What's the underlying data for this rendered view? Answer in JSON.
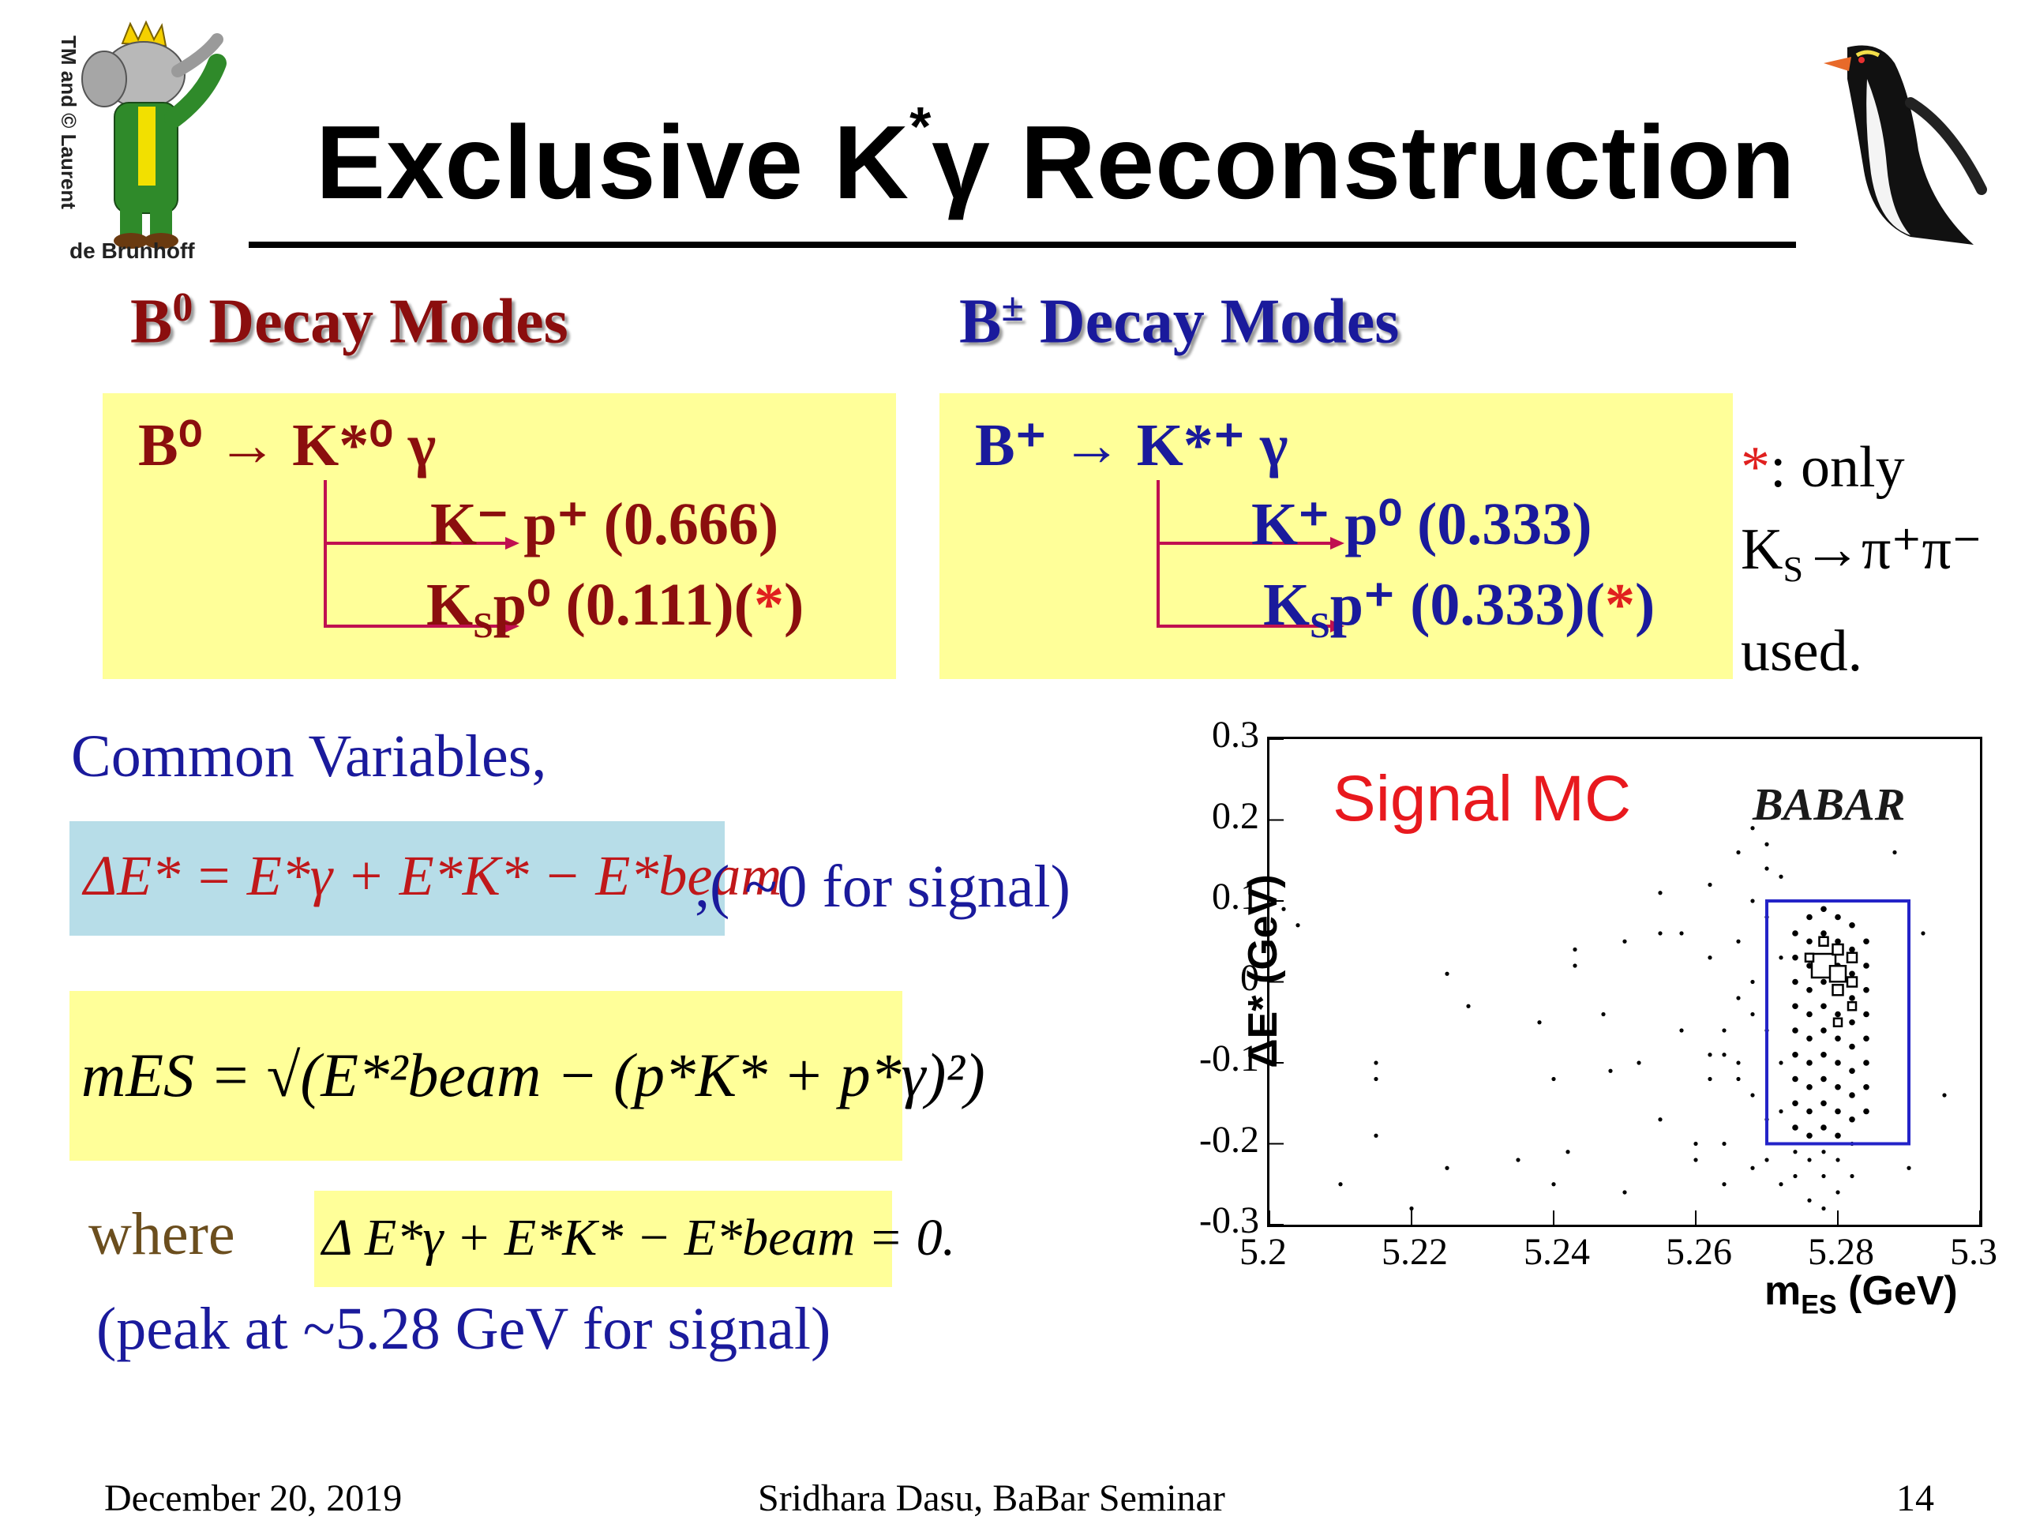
{
  "logo": {
    "credit_line1": "TM and © Laurent",
    "credit_line2": "de Brunhoff"
  },
  "title": {
    "text_pre": "Exclusive K",
    "text_sup": "*",
    "text_post": "γ Reconstruction"
  },
  "b0": {
    "heading_b": "B",
    "heading_sup": "0",
    "heading_rest": " Decay Modes",
    "main_decay": "B⁰ → K*⁰ γ",
    "mode1": "K⁻ p⁺ (0.666)",
    "mode2_pre": "K",
    "mode2_sub": "S",
    "mode2_post": "p⁰  (0.111)(",
    "mode2_ast": "*",
    "mode2_end": ")"
  },
  "bplus": {
    "heading_b": "B",
    "heading_sup": "±",
    "heading_rest": " Decay Modes",
    "main_decay": "B⁺ → K*⁺ γ",
    "mode1": "K⁺ p⁰ (0.333)",
    "mode2_pre": "K",
    "mode2_sub": "S",
    "mode2_post": "p⁺  (0.333)(",
    "mode2_ast": "*",
    "mode2_end": ")"
  },
  "side_note": {
    "ast": "*",
    "line1": ":  only",
    "line2_pre": "K",
    "line2_sub": "S",
    "line2_post": "→π⁺π⁻",
    "line3": "used."
  },
  "common": {
    "label": "Common Variables,",
    "delta_e_suffix": ",( ~0 for signal)",
    "delta_e_formula": "ΔE* = E*γ + E*K* − E*beam",
    "mes_formula": "mES = √(E*²beam − (p*K* + p*γ)²)",
    "where_label": "where",
    "where_formula": "Δ E*γ + E*K* − E*beam = 0.",
    "peak_note": "(peak at ~5.28 GeV for signal)"
  },
  "plot": {
    "label": "Signal MC",
    "experiment": "BABAR",
    "xlabel_main": "m",
    "xlabel_sub": "ES",
    "xlabel_unit": " (GeV)",
    "ylabel": "ΔE* (GeV)",
    "x_ticks": [
      "5.2",
      "5.22",
      "5.24",
      "5.26",
      "5.28",
      "5.3"
    ],
    "y_ticks": [
      "0.3",
      "0.2",
      "0.1",
      "0",
      "-0.1",
      "-0.2",
      "-0.3"
    ]
  },
  "chart_data": {
    "type": "scatter",
    "title": "Signal MC",
    "xlabel": "mES (GeV)",
    "ylabel": "ΔE* (GeV)",
    "xlim": [
      5.2,
      5.3
    ],
    "ylim": [
      -0.3,
      0.3
    ],
    "signal_box": {
      "x": [
        5.27,
        5.29
      ],
      "y": [
        -0.2,
        0.1
      ]
    },
    "points": [
      [
        5.202,
        0.09
      ],
      [
        5.204,
        0.07
      ],
      [
        5.21,
        -0.25
      ],
      [
        5.215,
        -0.1
      ],
      [
        5.215,
        -0.12
      ],
      [
        5.215,
        -0.19
      ],
      [
        5.22,
        -0.28
      ],
      [
        5.225,
        0.01
      ],
      [
        5.225,
        -0.23
      ],
      [
        5.228,
        -0.03
      ],
      [
        5.235,
        -0.22
      ],
      [
        5.238,
        -0.05
      ],
      [
        5.24,
        -0.12
      ],
      [
        5.242,
        -0.21
      ],
      [
        5.24,
        -0.25
      ],
      [
        5.243,
        0.02
      ],
      [
        5.243,
        0.04
      ],
      [
        5.247,
        -0.04
      ],
      [
        5.248,
        -0.11
      ],
      [
        5.25,
        0.05
      ],
      [
        5.25,
        -0.26
      ],
      [
        5.252,
        -0.1
      ],
      [
        5.255,
        0.06
      ],
      [
        5.255,
        0.11
      ],
      [
        5.255,
        -0.17
      ],
      [
        5.258,
        0.06
      ],
      [
        5.258,
        -0.06
      ],
      [
        5.26,
        -0.2
      ],
      [
        5.26,
        -0.22
      ],
      [
        5.262,
        0.03
      ],
      [
        5.262,
        0.12
      ],
      [
        5.262,
        -0.09
      ],
      [
        5.262,
        -0.12
      ],
      [
        5.264,
        -0.06
      ],
      [
        5.264,
        -0.09
      ],
      [
        5.264,
        -0.2
      ],
      [
        5.264,
        -0.25
      ],
      [
        5.266,
        0.16
      ],
      [
        5.266,
        0.05
      ],
      [
        5.266,
        -0.02
      ],
      [
        5.266,
        -0.1
      ],
      [
        5.266,
        -0.12
      ],
      [
        5.268,
        0.19
      ],
      [
        5.268,
        0.1
      ],
      [
        5.268,
        0.0
      ],
      [
        5.268,
        -0.04
      ],
      [
        5.268,
        -0.14
      ],
      [
        5.268,
        -0.23
      ],
      [
        5.27,
        0.17
      ],
      [
        5.27,
        0.14
      ],
      [
        5.27,
        0.08
      ],
      [
        5.27,
        -0.06
      ],
      [
        5.27,
        -0.17
      ],
      [
        5.27,
        -0.22
      ],
      [
        5.272,
        0.13
      ],
      [
        5.272,
        0.03
      ],
      [
        5.272,
        -0.1
      ],
      [
        5.272,
        -0.16
      ],
      [
        5.272,
        -0.25
      ],
      [
        5.274,
        0.06
      ],
      [
        5.274,
        0.03
      ],
      [
        5.274,
        0.0
      ],
      [
        5.274,
        -0.03
      ],
      [
        5.274,
        -0.06
      ],
      [
        5.274,
        -0.09
      ],
      [
        5.274,
        -0.12
      ],
      [
        5.274,
        -0.15
      ],
      [
        5.274,
        -0.18
      ],
      [
        5.274,
        -0.21
      ],
      [
        5.274,
        -0.24
      ],
      [
        5.276,
        0.08
      ],
      [
        5.276,
        0.05
      ],
      [
        5.276,
        0.02
      ],
      [
        5.276,
        -0.01
      ],
      [
        5.276,
        -0.04
      ],
      [
        5.276,
        -0.07
      ],
      [
        5.276,
        -0.1
      ],
      [
        5.276,
        -0.13
      ],
      [
        5.276,
        -0.16
      ],
      [
        5.276,
        -0.19
      ],
      [
        5.276,
        -0.22
      ],
      [
        5.276,
        -0.27
      ],
      [
        5.278,
        0.09
      ],
      [
        5.278,
        0.06
      ],
      [
        5.278,
        0.03
      ],
      [
        5.278,
        0.0
      ],
      [
        5.278,
        -0.03
      ],
      [
        5.278,
        -0.06
      ],
      [
        5.278,
        -0.09
      ],
      [
        5.278,
        -0.12
      ],
      [
        5.278,
        -0.15
      ],
      [
        5.278,
        -0.18
      ],
      [
        5.278,
        -0.21
      ],
      [
        5.278,
        -0.24
      ],
      [
        5.278,
        -0.28
      ],
      [
        5.28,
        0.08
      ],
      [
        5.28,
        0.05
      ],
      [
        5.28,
        0.02
      ],
      [
        5.28,
        -0.01
      ],
      [
        5.28,
        -0.04
      ],
      [
        5.28,
        -0.07
      ],
      [
        5.28,
        -0.1
      ],
      [
        5.28,
        -0.13
      ],
      [
        5.28,
        -0.16
      ],
      [
        5.28,
        -0.19
      ],
      [
        5.28,
        -0.22
      ],
      [
        5.28,
        -0.26
      ],
      [
        5.282,
        0.07
      ],
      [
        5.282,
        0.04
      ],
      [
        5.282,
        0.01
      ],
      [
        5.282,
        -0.02
      ],
      [
        5.282,
        -0.05
      ],
      [
        5.282,
        -0.08
      ],
      [
        5.282,
        -0.11
      ],
      [
        5.282,
        -0.14
      ],
      [
        5.282,
        -0.17
      ],
      [
        5.282,
        -0.2
      ],
      [
        5.282,
        -0.24
      ],
      [
        5.284,
        0.05
      ],
      [
        5.284,
        0.02
      ],
      [
        5.284,
        -0.01
      ],
      [
        5.284,
        -0.04
      ],
      [
        5.284,
        -0.07
      ],
      [
        5.284,
        -0.1
      ],
      [
        5.284,
        -0.13
      ],
      [
        5.284,
        -0.16
      ],
      [
        5.288,
        0.16
      ],
      [
        5.29,
        -0.23
      ],
      [
        5.292,
        0.06
      ],
      [
        5.295,
        -0.14
      ]
    ],
    "big_boxes": [
      [
        5.278,
        0.02,
        3
      ],
      [
        5.28,
        0.01,
        2
      ],
      [
        5.28,
        0.04,
        1.3
      ],
      [
        5.28,
        -0.01,
        1.3
      ],
      [
        5.282,
        0.03,
        1.2
      ],
      [
        5.282,
        0.0,
        1.2
      ],
      [
        5.278,
        0.05,
        1.1
      ],
      [
        5.276,
        0.03,
        1.0
      ],
      [
        5.282,
        -0.03,
        1.0
      ],
      [
        5.28,
        -0.05,
        1.0
      ]
    ]
  },
  "footer": {
    "date": "December 20, 2019",
    "author": "Sridhara Dasu, BaBar Seminar",
    "page": "14"
  }
}
